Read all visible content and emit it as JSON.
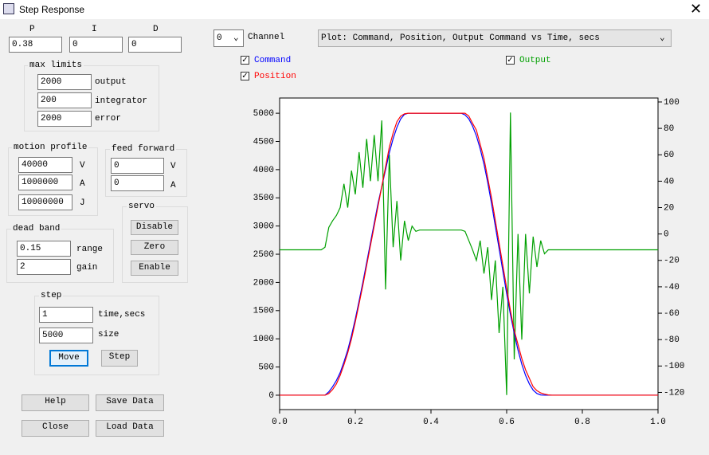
{
  "window": {
    "title": "Step Response"
  },
  "pid": {
    "labels": [
      "P",
      "I",
      "D"
    ],
    "values": [
      "0.38",
      "0",
      "0"
    ]
  },
  "max_limits": {
    "title": "max limits",
    "fields": [
      {
        "value": "2000",
        "label": "output"
      },
      {
        "value": "200",
        "label": "integrator"
      },
      {
        "value": "2000",
        "label": "error"
      }
    ]
  },
  "motion_profile": {
    "title": "motion profile",
    "fields": [
      {
        "value": "40000",
        "label": "V"
      },
      {
        "value": "1000000",
        "label": "A"
      },
      {
        "value": "10000000",
        "label": "J"
      }
    ]
  },
  "feed_forward": {
    "title": "feed forward",
    "fields": [
      {
        "value": "0",
        "label": "V"
      },
      {
        "value": "0",
        "label": "A"
      }
    ]
  },
  "servo": {
    "title": "servo",
    "buttons": [
      "Disable",
      "Zero",
      "Enable"
    ]
  },
  "dead_band": {
    "title": "dead band",
    "fields": [
      {
        "value": "0.15",
        "label": "range"
      },
      {
        "value": "2",
        "label": "gain"
      }
    ]
  },
  "step": {
    "title": "step",
    "fields": [
      {
        "value": "1",
        "label": "time,secs"
      },
      {
        "value": "5000",
        "label": "size"
      }
    ],
    "buttons": [
      "Move",
      "Step"
    ]
  },
  "buttons": [
    "Help",
    "Save Data",
    "Close",
    "Load Data"
  ],
  "channel": {
    "value": "0",
    "label": "Channel"
  },
  "plot_select": "Plot: Command, Position, Output Command vs Time, secs",
  "chart_data": {
    "type": "line",
    "x": [
      0,
      0.01,
      0.02,
      0.03,
      0.04,
      0.05,
      0.06,
      0.07,
      0.08,
      0.09,
      0.1,
      0.11,
      0.12,
      0.13,
      0.14,
      0.15,
      0.16,
      0.17,
      0.18,
      0.19,
      0.2,
      0.21,
      0.22,
      0.23,
      0.24,
      0.25,
      0.26,
      0.27,
      0.28,
      0.29,
      0.3,
      0.31,
      0.32,
      0.33,
      0.34,
      0.35,
      0.36,
      0.37,
      0.38,
      0.39,
      0.4,
      0.41,
      0.42,
      0.43,
      0.44,
      0.45,
      0.46,
      0.47,
      0.48,
      0.49,
      0.5,
      0.51,
      0.52,
      0.53,
      0.54,
      0.55,
      0.56,
      0.57,
      0.58,
      0.59,
      0.6,
      0.61,
      0.62,
      0.63,
      0.64,
      0.65,
      0.66,
      0.67,
      0.68,
      0.69,
      0.7,
      0.71,
      0.72,
      0.73,
      0.74,
      0.75,
      0.76,
      0.77,
      0.78,
      0.79,
      0.8,
      0.81,
      0.82,
      0.83,
      0.84,
      0.85,
      0.86,
      0.87,
      0.88,
      0.89,
      0.9,
      0.91,
      0.92,
      0.93,
      0.94,
      0.95,
      0.96,
      0.97,
      0.98,
      0.99,
      1
    ],
    "series": [
      {
        "name": "Command",
        "color": "#0000ff",
        "values": [
          0,
          0,
          0,
          0,
          0,
          0,
          0,
          0,
          0,
          0,
          0,
          0,
          0,
          60,
          150,
          260,
          400,
          590,
          800,
          1060,
          1350,
          1670,
          2000,
          2350,
          2700,
          3050,
          3400,
          3700,
          4000,
          4300,
          4550,
          4750,
          4900,
          4980,
          5000,
          5000,
          5000,
          5000,
          5000,
          5000,
          5000,
          5000,
          5000,
          5000,
          5000,
          5000,
          5000,
          5000,
          5000,
          4970,
          4900,
          4770,
          4600,
          4370,
          4100,
          3770,
          3400,
          3000,
          2600,
          2200,
          1800,
          1430,
          1100,
          800,
          550,
          350,
          200,
          90,
          30,
          5,
          0,
          0,
          0,
          0,
          0,
          0,
          0,
          0,
          0,
          0,
          0,
          0,
          0,
          0,
          0,
          0,
          0,
          0,
          0,
          0,
          0,
          0,
          0,
          0,
          0,
          0,
          0,
          0,
          0,
          0,
          0
        ]
      },
      {
        "name": "Position",
        "color": "#ff0000",
        "values": [
          0,
          0,
          0,
          0,
          0,
          0,
          0,
          0,
          0,
          0,
          0,
          0,
          0,
          30,
          100,
          200,
          350,
          540,
          750,
          1000,
          1300,
          1620,
          1950,
          2300,
          2650,
          3000,
          3350,
          3700,
          4050,
          4400,
          4650,
          4850,
          4950,
          4990,
          5000,
          5000,
          5000,
          5000,
          5000,
          5000,
          5000,
          5000,
          5000,
          5000,
          5000,
          5000,
          5000,
          5000,
          5000,
          5000,
          4950,
          4820,
          4700,
          4450,
          4200,
          3850,
          3500,
          3100,
          2700,
          2300,
          1900,
          1500,
          1150,
          900,
          650,
          450,
          300,
          150,
          80,
          40,
          20,
          5,
          0,
          0,
          0,
          0,
          0,
          0,
          0,
          0,
          0,
          0,
          0,
          0,
          0,
          0,
          0,
          0,
          0,
          0,
          0,
          0,
          0,
          0,
          0,
          0,
          0,
          0,
          0,
          0,
          0
        ]
      },
      {
        "name": "Output",
        "color": "#00a000",
        "axis": "y2",
        "values": [
          -12,
          -12,
          -12,
          -12,
          -12,
          -12,
          -12,
          -12,
          -12,
          -12,
          -12,
          -12,
          -10,
          5,
          10,
          14,
          20,
          38,
          20,
          48,
          30,
          62,
          35,
          72,
          40,
          75,
          40,
          86,
          -42,
          60,
          -10,
          25,
          -20,
          10,
          -5,
          6,
          2,
          3,
          3,
          3,
          3,
          3,
          3,
          3,
          3,
          3,
          3,
          3,
          3,
          2,
          -5,
          -12,
          -20,
          -5,
          -30,
          -10,
          -50,
          -20,
          -75,
          -40,
          -122,
          92,
          -95,
          0,
          -80,
          0,
          -45,
          -2,
          -25,
          -5,
          -15,
          -12,
          -12,
          -12,
          -12,
          -12,
          -12,
          -12,
          -12,
          -12,
          -12,
          -12,
          -12,
          -12,
          -12,
          -12,
          -12,
          -12,
          -12,
          -12,
          -12,
          -12,
          -12,
          -12,
          -12,
          -12,
          -12,
          -12,
          -12,
          -12,
          -12
        ]
      }
    ],
    "xlim": [
      0,
      1
    ],
    "xticks": [
      {
        "value": 0,
        "label": "0.0"
      },
      0.2,
      0.4,
      0.6,
      0.8,
      {
        "value": 1,
        "label": "1.0"
      }
    ],
    "ylim": [
      -255,
      5270
    ],
    "yticks": [
      0,
      500,
      1000,
      1500,
      2000,
      2500,
      3000,
      3500,
      4000,
      4500,
      5000
    ],
    "y2lim": [
      -133,
      103
    ],
    "y2ticks": [
      -120,
      -100,
      -80,
      -60,
      -40,
      -20,
      0,
      20,
      40,
      60,
      80,
      100
    ]
  }
}
